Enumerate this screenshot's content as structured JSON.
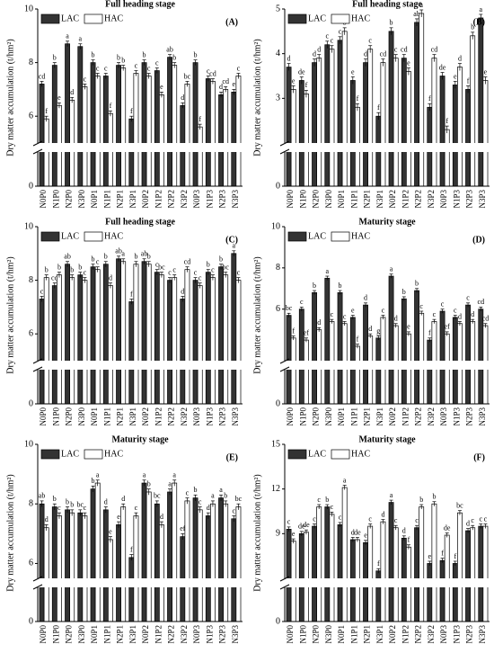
{
  "chart_data": [
    {
      "type": "bar",
      "title": "Full heading stage",
      "panel_label": "(A)",
      "y_label": "Dry matter accumulation (t/hm²)",
      "categories": [
        "N0P0",
        "N1P0",
        "N2P0",
        "N3P0",
        "N0P1",
        "N1P1",
        "N2P1",
        "N3P1",
        "N0P2",
        "N1P2",
        "N2P2",
        "N3P2",
        "N0P3",
        "N1P3",
        "N2P3",
        "N3P3"
      ],
      "ylim": [
        0,
        10
      ],
      "yticks": [
        0,
        6,
        8,
        10
      ],
      "axis_break": [
        1,
        5
      ],
      "series": [
        {
          "name": "LAC",
          "color": "#333333",
          "values": [
            7.2,
            7.9,
            8.7,
            8.6,
            8.0,
            7.5,
            7.9,
            5.9,
            8.0,
            7.7,
            8.2,
            6.4,
            8.0,
            7.4,
            6.8,
            6.9
          ],
          "errors": [
            0.1,
            0.1,
            0.1,
            0.1,
            0.1,
            0.1,
            0.1,
            0.1,
            0.1,
            0.1,
            0.1,
            0.1,
            0.1,
            0.1,
            0.1,
            0.1
          ],
          "letters": [
            "cd",
            "b",
            "a",
            "a",
            "b",
            "c",
            "b",
            "f",
            "b",
            "c",
            "ab",
            "d",
            "b",
            "c",
            "d",
            "e"
          ]
        },
        {
          "name": "HAC",
          "color": "#ffffff",
          "values": [
            5.9,
            6.4,
            6.6,
            7.1,
            7.5,
            6.1,
            7.8,
            7.6,
            7.5,
            6.8,
            7.9,
            7.2,
            5.6,
            7.3,
            7.0,
            7.5
          ],
          "errors": [
            0.1,
            0.1,
            0.1,
            0.1,
            0.1,
            0.1,
            0.1,
            0.1,
            0.1,
            0.1,
            0.1,
            0.1,
            0.1,
            0.1,
            0.1,
            0.1
          ],
          "letters": [
            "f",
            "e",
            "d",
            "c",
            "c",
            "f",
            "b",
            "c",
            "c",
            "e",
            "b",
            "bc",
            "f",
            "cd",
            "cd",
            "c"
          ]
        }
      ]
    },
    {
      "type": "bar",
      "title": "Full heading stage",
      "panel_label": "(B)",
      "y_label": "Dry matter accumulation (t/hm²)",
      "categories": [
        "N0P0",
        "N1P0",
        "N2P0",
        "N3P0",
        "N0P1",
        "N1P1",
        "N2P1",
        "N3P1",
        "N0P2",
        "N1P2",
        "N2P2",
        "N3P2",
        "N0P3",
        "N1P3",
        "N2P3",
        "N3P3"
      ],
      "ylim": [
        0,
        5
      ],
      "yticks": [
        0,
        3,
        4,
        5
      ],
      "axis_break": [
        0.5,
        2
      ],
      "series": [
        {
          "name": "LAC",
          "color": "#333333",
          "values": [
            3.7,
            3.4,
            3.8,
            4.2,
            4.3,
            3.4,
            3.8,
            2.6,
            4.5,
            3.9,
            4.7,
            2.8,
            3.5,
            3.3,
            3.2,
            4.8
          ],
          "errors": [
            0.08,
            0.08,
            0.08,
            0.08,
            0.08,
            0.08,
            0.08,
            0.08,
            0.08,
            0.08,
            0.08,
            0.08,
            0.08,
            0.08,
            0.08,
            0.08
          ],
          "letters": [
            "d",
            "de",
            "d",
            "c",
            "c",
            "e",
            "d",
            "f",
            "b",
            "cd",
            "ab",
            "f",
            "de",
            "e",
            "f",
            "a"
          ]
        },
        {
          "name": "HAC",
          "color": "#ffffff",
          "values": [
            3.2,
            3.1,
            3.9,
            4.1,
            4.5,
            2.8,
            4.1,
            3.8,
            3.9,
            3.6,
            4.9,
            3.9,
            2.3,
            3.7,
            4.4,
            3.4
          ],
          "errors": [
            0.08,
            0.08,
            0.08,
            0.08,
            0.08,
            0.08,
            0.08,
            0.08,
            0.08,
            0.08,
            0.08,
            0.08,
            0.08,
            0.08,
            0.08,
            0.08
          ],
          "letters": [
            "e",
            "f",
            "d",
            "c",
            "b",
            "f",
            "c",
            "cd",
            "c",
            "e",
            "a",
            "cd",
            "f",
            "d",
            "b",
            "e"
          ]
        }
      ]
    },
    {
      "type": "bar",
      "title": "Full heading stage",
      "panel_label": "(C)",
      "y_label": "Dry matter accumulation (t/hm²)",
      "categories": [
        "N0P0",
        "N1P0",
        "N2P0",
        "N3P0",
        "N0P1",
        "N1P1",
        "N2P1",
        "N3P1",
        "N0P2",
        "N1P2",
        "N2P2",
        "N3P2",
        "N0P3",
        "N1P3",
        "N2P3",
        "N3P3"
      ],
      "ylim": [
        0,
        10
      ],
      "yticks": [
        0,
        6,
        8,
        10
      ],
      "axis_break": [
        1,
        5
      ],
      "series": [
        {
          "name": "LAC",
          "color": "#333333",
          "values": [
            7.3,
            7.8,
            8.6,
            8.2,
            8.5,
            8.6,
            8.8,
            7.2,
            8.7,
            8.3,
            8.0,
            7.3,
            8.0,
            8.3,
            8.5,
            9.0
          ],
          "errors": [
            0.1,
            0.1,
            0.1,
            0.1,
            0.1,
            0.1,
            0.1,
            0.1,
            0.1,
            0.1,
            0.1,
            0.1,
            0.1,
            0.1,
            0.1,
            0.1
          ],
          "letters": [
            "c",
            "cd",
            "ab",
            "b",
            "b",
            "b",
            "ab",
            "f",
            "ab",
            "c",
            "c",
            "d",
            "c",
            "b",
            "b",
            "a"
          ]
        },
        {
          "name": "HAC",
          "color": "#ffffff",
          "values": [
            8.1,
            8.2,
            8.1,
            8.0,
            8.4,
            7.8,
            8.7,
            8.6,
            8.6,
            8.2,
            8.1,
            8.4,
            7.8,
            8.1,
            8.2,
            8.0
          ],
          "errors": [
            0.1,
            0.1,
            0.1,
            0.1,
            0.1,
            0.1,
            0.1,
            0.1,
            0.1,
            0.1,
            0.1,
            0.1,
            0.1,
            0.1,
            0.1,
            0.1
          ],
          "letters": [
            "b",
            "b",
            "b",
            "c",
            "c",
            "d",
            "a",
            "b",
            "b",
            "bc",
            "c",
            "cd",
            "c",
            "c",
            "bc",
            "c"
          ]
        }
      ]
    },
    {
      "type": "bar",
      "title": "Maturity stage",
      "panel_label": "(D)",
      "y_label": "Dry matter accumulation (t/hm²)",
      "categories": [
        "N0P0",
        "N1P0",
        "N2P0",
        "N3P0",
        "N0P1",
        "N1P1",
        "N2P1",
        "N3P1",
        "N0P2",
        "N1P2",
        "N2P2",
        "N3P2",
        "N0P3",
        "N1P3",
        "N2P3",
        "N3P3"
      ],
      "ylim": [
        0,
        10
      ],
      "yticks": [
        0,
        6,
        8,
        10
      ],
      "axis_break": [
        1,
        3.5
      ],
      "series": [
        {
          "name": "LAC",
          "color": "#333333",
          "values": [
            5.7,
            6.0,
            6.8,
            7.5,
            6.8,
            5.6,
            6.2,
            4.6,
            7.6,
            6.5,
            6.9,
            4.5,
            5.9,
            5.6,
            6.2,
            6.0
          ],
          "errors": [
            0.1,
            0.1,
            0.1,
            0.1,
            0.1,
            0.1,
            0.1,
            0.1,
            0.1,
            0.1,
            0.1,
            0.1,
            0.1,
            0.1,
            0.1,
            0.1
          ],
          "letters": [
            "bc",
            "c",
            "b",
            "a",
            "b",
            "e",
            "d",
            "g",
            "a",
            "b",
            "b",
            "f",
            "c",
            "c",
            "c",
            "cd"
          ]
        },
        {
          "name": "HAC",
          "color": "#ffffff",
          "values": [
            4.6,
            4.5,
            5.0,
            5.4,
            5.3,
            4.2,
            4.7,
            5.6,
            5.2,
            4.8,
            5.8,
            5.4,
            4.8,
            5.3,
            5.4,
            5.2
          ],
          "errors": [
            0.1,
            0.1,
            0.1,
            0.1,
            0.1,
            0.1,
            0.1,
            0.1,
            0.1,
            0.1,
            0.1,
            0.1,
            0.1,
            0.1,
            0.1,
            0.1
          ],
          "letters": [
            "f",
            "ef",
            "d",
            "c",
            "c",
            "f",
            "d",
            "c",
            "d",
            "e",
            "c",
            "c",
            "ef",
            "d",
            "d",
            "cd"
          ]
        }
      ]
    },
    {
      "type": "bar",
      "title": "Maturity stage",
      "panel_label": "(E)",
      "y_label": "Dry matter accumulation (t/hm²)",
      "categories": [
        "N0P0",
        "N1P0",
        "N2P0",
        "N3P0",
        "N0P1",
        "N1P1",
        "N2P1",
        "N3P1",
        "N0P2",
        "N1P2",
        "N2P2",
        "N3P2",
        "N0P3",
        "N1P3",
        "N2P3",
        "N3P3"
      ],
      "ylim": [
        0,
        10
      ],
      "yticks": [
        0,
        6,
        8,
        10
      ],
      "axis_break": [
        1,
        5.5
      ],
      "series": [
        {
          "name": "LAC",
          "color": "#333333",
          "values": [
            8.0,
            7.9,
            7.8,
            7.7,
            8.5,
            7.8,
            7.3,
            6.2,
            8.7,
            8.0,
            8.4,
            6.9,
            8.2,
            7.6,
            8.2,
            7.5
          ],
          "errors": [
            0.1,
            0.1,
            0.1,
            0.1,
            0.1,
            0.1,
            0.1,
            0.1,
            0.1,
            0.1,
            0.1,
            0.1,
            0.1,
            0.1,
            0.1,
            0.1
          ],
          "letters": [
            "ab",
            "b",
            "b",
            "bc",
            "b",
            "d",
            "e",
            "f",
            "a",
            "bc",
            "a",
            "ef",
            "b",
            "d",
            "a",
            "c"
          ]
        },
        {
          "name": "HAC",
          "color": "#ffffff",
          "values": [
            7.2,
            7.6,
            7.7,
            7.6,
            8.7,
            6.8,
            7.9,
            7.6,
            8.4,
            7.3,
            8.7,
            8.1,
            7.8,
            8.0,
            8.0,
            7.9
          ],
          "errors": [
            0.1,
            0.1,
            0.1,
            0.1,
            0.1,
            0.1,
            0.1,
            0.1,
            0.1,
            0.1,
            0.1,
            0.1,
            0.1,
            0.1,
            0.1,
            0.1
          ],
          "letters": [
            "d",
            "c",
            "b",
            "c",
            "a",
            "e",
            "d",
            "c",
            "b",
            "d",
            "a",
            "c",
            "c",
            "a",
            "b",
            "bc"
          ]
        }
      ]
    },
    {
      "type": "bar",
      "title": "Maturity stage",
      "panel_label": "(F)",
      "y_label": "Dry matter accumulation (t/hm²)",
      "categories": [
        "N0P0",
        "N1P0",
        "N2P0",
        "N3P0",
        "N0P1",
        "N1P1",
        "N2P1",
        "N3P1",
        "N0P2",
        "N1P2",
        "N2P2",
        "N3P2",
        "N0P3",
        "N1P3",
        "N2P3",
        "N3P3"
      ],
      "ylim": [
        0,
        15
      ],
      "yticks": [
        0,
        9,
        12,
        15
      ],
      "axis_break": [
        1.5,
        6
      ],
      "series": [
        {
          "name": "LAC",
          "color": "#333333",
          "values": [
            9.3,
            9.0,
            9.5,
            10.8,
            9.6,
            8.6,
            8.4,
            6.5,
            11.1,
            8.7,
            9.4,
            7.0,
            7.2,
            7.0,
            9.2,
            9.5
          ],
          "errors": [
            0.15,
            0.15,
            0.15,
            0.15,
            0.15,
            0.15,
            0.15,
            0.15,
            0.15,
            0.15,
            0.15,
            0.15,
            0.15,
            0.15,
            0.15,
            0.15
          ],
          "letters": [
            "c",
            "de",
            "c",
            "b",
            "c",
            "d",
            "e",
            "f",
            "a",
            "d",
            "c",
            "e",
            "f",
            "f",
            "d",
            "c"
          ]
        },
        {
          "name": "HAC",
          "color": "#ffffff",
          "values": [
            8.5,
            9.1,
            10.8,
            10.3,
            12.1,
            8.6,
            9.5,
            9.8,
            9.4,
            8.1,
            10.8,
            11.0,
            8.9,
            10.4,
            9.4,
            9.5
          ],
          "errors": [
            0.15,
            0.15,
            0.15,
            0.15,
            0.15,
            0.15,
            0.15,
            0.15,
            0.15,
            0.15,
            0.15,
            0.15,
            0.15,
            0.15,
            0.15,
            0.15
          ],
          "letters": [
            "e",
            "de",
            "c",
            "c",
            "a",
            "de",
            "c",
            "d",
            "c",
            "f",
            "b",
            "b",
            "de",
            "bc",
            "c",
            "c"
          ]
        }
      ]
    }
  ]
}
